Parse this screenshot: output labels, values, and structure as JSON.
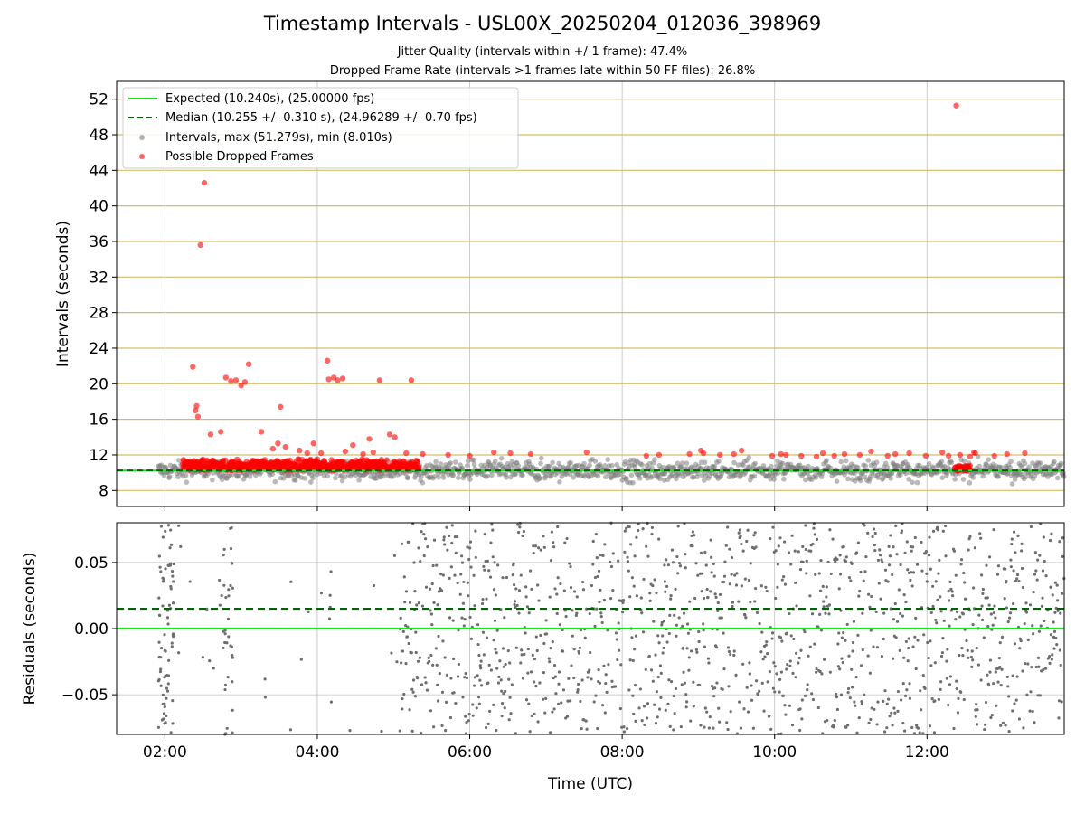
{
  "title": "Timestamp Intervals - USL00X_20250204_012036_398969",
  "subtitle_1": "Jitter Quality (intervals within +/-1 frame): 47.4%",
  "subtitle_2": "Dropped Frame Rate (intervals >1 frames late within 50 FF files): 26.8%",
  "colors": {
    "expected": "#19e619",
    "median": "#006400",
    "intervals": "#808080",
    "dropped": "#ff0000",
    "hgrid": "#d4be6a"
  },
  "chart_data": [
    {
      "type": "scatter",
      "ylabel": "Intervals (seconds)",
      "xlabel": "",
      "x_unit": "time UTC (HH:MM)",
      "xlim": [
        "01:22",
        "13:48"
      ],
      "ylim": [
        6.2,
        54.0
      ],
      "yticks": [
        8,
        12,
        16,
        20,
        24,
        28,
        32,
        36,
        40,
        44,
        48,
        52
      ],
      "xticks": [
        "02:00",
        "04:00",
        "06:00",
        "08:00",
        "10:00",
        "12:00"
      ],
      "hgrid": true,
      "vgrid": true,
      "legend_position": "top-left",
      "legend": [
        {
          "label": "Expected (10.240s), (25.00000 fps)",
          "style": "solid-line"
        },
        {
          "label": "Median (10.255 +/- 0.310 s), (24.96289 +/- 0.70 fps)",
          "style": "dashed-line"
        },
        {
          "label": "Intervals, max (51.279s), min (8.010s)",
          "style": "gray-dot"
        },
        {
          "label": "Possible Dropped Frames",
          "style": "red-dot"
        }
      ],
      "expected_value": 10.24,
      "median_value": 10.255,
      "interval_range": {
        "start": "01:55",
        "end": "13:48",
        "typical": 10.25,
        "min": 8.01,
        "max": 51.279
      },
      "dropped_frames_outliers": [
        {
          "t": "02:22",
          "v": 21.9
        },
        {
          "t": "02:24",
          "v": 17.0
        },
        {
          "t": "02:25",
          "v": 17.5
        },
        {
          "t": "02:26",
          "v": 16.3
        },
        {
          "t": "02:28",
          "v": 35.6
        },
        {
          "t": "02:31",
          "v": 42.6
        },
        {
          "t": "02:36",
          "v": 14.3
        },
        {
          "t": "02:44",
          "v": 14.6
        },
        {
          "t": "02:48",
          "v": 20.7
        },
        {
          "t": "02:52",
          "v": 20.3
        },
        {
          "t": "02:56",
          "v": 20.4
        },
        {
          "t": "03:00",
          "v": 19.8
        },
        {
          "t": "03:03",
          "v": 20.2
        },
        {
          "t": "03:06",
          "v": 22.2
        },
        {
          "t": "03:16",
          "v": 14.6
        },
        {
          "t": "03:25",
          "v": 12.7
        },
        {
          "t": "03:29",
          "v": 13.3
        },
        {
          "t": "03:31",
          "v": 17.4
        },
        {
          "t": "03:35",
          "v": 12.9
        },
        {
          "t": "03:46",
          "v": 12.5
        },
        {
          "t": "03:52",
          "v": 12.2
        },
        {
          "t": "03:57",
          "v": 13.3
        },
        {
          "t": "04:03",
          "v": 12.2
        },
        {
          "t": "04:08",
          "v": 22.6
        },
        {
          "t": "04:09",
          "v": 20.5
        },
        {
          "t": "04:13",
          "v": 20.7
        },
        {
          "t": "04:16",
          "v": 20.4
        },
        {
          "t": "04:20",
          "v": 20.6
        },
        {
          "t": "04:22",
          "v": 12.4
        },
        {
          "t": "04:28",
          "v": 13.1
        },
        {
          "t": "04:36",
          "v": 12.1
        },
        {
          "t": "04:41",
          "v": 13.8
        },
        {
          "t": "04:44",
          "v": 12.3
        },
        {
          "t": "04:49",
          "v": 20.4
        },
        {
          "t": "04:57",
          "v": 14.3
        },
        {
          "t": "05:01",
          "v": 14.0
        },
        {
          "t": "05:10",
          "v": 12.2
        },
        {
          "t": "05:14",
          "v": 20.4
        },
        {
          "t": "05:23",
          "v": 12.1
        },
        {
          "t": "05:43",
          "v": 12.0
        },
        {
          "t": "06:00",
          "v": 11.9
        },
        {
          "t": "06:19",
          "v": 12.3
        },
        {
          "t": "06:32",
          "v": 12.2
        },
        {
          "t": "06:48",
          "v": 12.1
        },
        {
          "t": "07:32",
          "v": 12.3
        },
        {
          "t": "08:19",
          "v": 11.9
        },
        {
          "t": "08:29",
          "v": 12.0
        },
        {
          "t": "08:53",
          "v": 12.1
        },
        {
          "t": "09:02",
          "v": 12.5
        },
        {
          "t": "09:04",
          "v": 12.2
        },
        {
          "t": "09:17",
          "v": 12.0
        },
        {
          "t": "09:28",
          "v": 12.1
        },
        {
          "t": "09:34",
          "v": 12.5
        },
        {
          "t": "09:58",
          "v": 11.9
        },
        {
          "t": "10:05",
          "v": 12.1
        },
        {
          "t": "10:09",
          "v": 12.0
        },
        {
          "t": "10:21",
          "v": 11.9
        },
        {
          "t": "10:33",
          "v": 11.8
        },
        {
          "t": "10:38",
          "v": 12.2
        },
        {
          "t": "10:47",
          "v": 11.9
        },
        {
          "t": "10:55",
          "v": 12.1
        },
        {
          "t": "11:07",
          "v": 12.0
        },
        {
          "t": "11:16",
          "v": 12.4
        },
        {
          "t": "11:29",
          "v": 11.9
        },
        {
          "t": "11:35",
          "v": 12.1
        },
        {
          "t": "11:46",
          "v": 12.2
        },
        {
          "t": "11:59",
          "v": 11.9
        },
        {
          "t": "12:12",
          "v": 12.3
        },
        {
          "t": "12:17",
          "v": 11.9
        },
        {
          "t": "12:23",
          "v": 51.279
        },
        {
          "t": "12:26",
          "v": 12.0
        },
        {
          "t": "12:34",
          "v": 11.8
        },
        {
          "t": "12:37",
          "v": 12.3
        },
        {
          "t": "12:38",
          "v": 12.2
        },
        {
          "t": "12:53",
          "v": 11.9
        },
        {
          "t": "13:03",
          "v": 12.1
        },
        {
          "t": "13:17",
          "v": 12.2
        }
      ],
      "dropped_frames_dense_cluster": {
        "start": "02:14",
        "end": "05:20",
        "min": 9.9,
        "max": 11.6
      },
      "dropped_frames_cluster_2": {
        "start": "12:22",
        "end": "12:34",
        "min": 10.2,
        "max": 10.8
      }
    },
    {
      "type": "scatter",
      "ylabel": "Residuals (seconds)",
      "xlabel": "Time (UTC)",
      "xlim": [
        "01:22",
        "13:48"
      ],
      "ylim": [
        -0.08,
        0.08
      ],
      "yticks": [
        -0.05,
        0.0,
        0.05
      ],
      "ytick_labels": [
        "−0.05",
        "0.00",
        "0.05"
      ],
      "xticks": [
        "02:00",
        "04:00",
        "06:00",
        "08:00",
        "10:00",
        "12:00"
      ],
      "grid": true,
      "expected_residual": 0.0,
      "median_residual": 0.015,
      "residual_spread": 0.05
    }
  ]
}
